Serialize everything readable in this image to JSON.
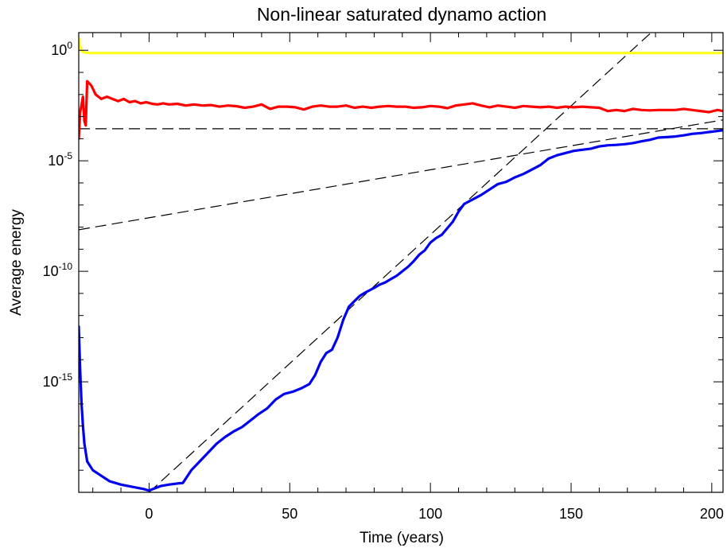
{
  "chart_data": {
    "type": "line",
    "title": "Non-linear saturated dynamo action",
    "xlabel": "Time (years)",
    "ylabel": "Average energy",
    "xlim": [
      -25,
      204
    ],
    "ylim_log10": [
      -20,
      0.8
    ],
    "y_scale": "log",
    "x_ticks": [
      0,
      50,
      100,
      150,
      200
    ],
    "x_tick_labels": [
      "0",
      "50",
      "100",
      "150",
      "200"
    ],
    "y_ticks_log10": [
      0,
      -5,
      -10,
      -15
    ],
    "y_tick_labels": [
      {
        "base": "10",
        "exp": "0"
      },
      {
        "base": "10",
        "exp": "-5"
      },
      {
        "base": "10",
        "exp": "-10"
      },
      {
        "base": "10",
        "exp": "-15"
      }
    ],
    "grid": false,
    "colors": {
      "kinetic": "#ffff22",
      "small_scale": "#ff0000",
      "magnetic": "#0000ee",
      "reference": "#000000"
    },
    "series": [
      {
        "key": "yellow",
        "color": "#ffff22",
        "x": [
          -25,
          -24.5,
          -24,
          -23,
          -21,
          -15,
          0,
          50,
          100,
          150,
          204
        ],
        "log10_y": [
          0.55,
          0.2,
          -0.05,
          -0.1,
          -0.12,
          -0.12,
          -0.12,
          -0.12,
          -0.12,
          -0.12,
          -0.12
        ]
      },
      {
        "key": "red",
        "color": "#ff0000",
        "x": [
          -25,
          -24.5,
          -23.5,
          -23,
          -22.5,
          -22,
          -20.5,
          -19,
          -17,
          -15,
          -13,
          -11,
          -9,
          -7,
          -5,
          -3,
          -1,
          1,
          3,
          5,
          7,
          10,
          13,
          16,
          19,
          22,
          25,
          28,
          31,
          34,
          37,
          40,
          43,
          46,
          49,
          52,
          55,
          58,
          61,
          64,
          67,
          70,
          73,
          76,
          79,
          82,
          85,
          88,
          91,
          94,
          97,
          100,
          103,
          106,
          109,
          112,
          115,
          118,
          121,
          124,
          127,
          130,
          133,
          136,
          139,
          142,
          145,
          148,
          151,
          154,
          157,
          160,
          163,
          166,
          169,
          172,
          175,
          178,
          181,
          184,
          187,
          190,
          193,
          196,
          199,
          202,
          204
        ],
        "log10_y": [
          -4.0,
          -2.8,
          -2.1,
          -3.2,
          -3.4,
          -1.4,
          -1.6,
          -2.0,
          -2.2,
          -2.1,
          -2.2,
          -2.3,
          -2.2,
          -2.35,
          -2.3,
          -2.4,
          -2.35,
          -2.42,
          -2.45,
          -2.4,
          -2.45,
          -2.42,
          -2.5,
          -2.45,
          -2.5,
          -2.48,
          -2.55,
          -2.5,
          -2.53,
          -2.6,
          -2.55,
          -2.45,
          -2.65,
          -2.55,
          -2.55,
          -2.58,
          -2.68,
          -2.55,
          -2.5,
          -2.55,
          -2.55,
          -2.5,
          -2.6,
          -2.55,
          -2.6,
          -2.55,
          -2.52,
          -2.55,
          -2.55,
          -2.6,
          -2.58,
          -2.52,
          -2.55,
          -2.62,
          -2.5,
          -2.45,
          -2.4,
          -2.5,
          -2.58,
          -2.5,
          -2.55,
          -2.6,
          -2.52,
          -2.55,
          -2.58,
          -2.55,
          -2.6,
          -2.55,
          -2.58,
          -2.55,
          -2.58,
          -2.6,
          -2.75,
          -2.7,
          -2.75,
          -2.65,
          -2.7,
          -2.72,
          -2.7,
          -2.7,
          -2.7,
          -2.65,
          -2.7,
          -2.75,
          -2.8,
          -2.7,
          -2.75
        ]
      },
      {
        "key": "blue",
        "color": "#0000ee",
        "x": [
          -25,
          -24.5,
          -24,
          -23.5,
          -23,
          -22,
          -20,
          -17,
          -14,
          -10,
          -6,
          -2,
          0,
          2,
          4,
          7,
          10,
          12,
          15,
          18,
          21,
          24,
          27,
          30,
          33,
          36,
          39,
          42,
          45,
          48,
          51,
          54,
          57,
          59,
          61,
          63,
          65,
          67,
          69,
          71,
          73,
          75,
          77,
          80,
          82,
          84,
          86,
          88,
          90,
          92,
          94,
          96,
          98,
          100,
          102,
          104,
          106,
          108,
          110,
          112,
          115,
          118,
          121,
          124,
          127,
          130,
          133,
          136,
          139,
          142,
          145,
          148,
          151,
          154,
          157,
          160,
          163,
          166,
          169,
          172,
          175,
          178,
          181,
          184,
          187,
          190,
          193,
          196,
          199,
          202,
          204
        ],
        "log10_y": [
          -12.5,
          -14.5,
          -16.0,
          -17.0,
          -17.8,
          -18.6,
          -19.0,
          -19.25,
          -19.5,
          -19.65,
          -19.75,
          -19.85,
          -19.92,
          -19.82,
          -19.72,
          -19.65,
          -19.6,
          -19.58,
          -19.0,
          -18.6,
          -18.2,
          -17.8,
          -17.5,
          -17.25,
          -17.05,
          -16.75,
          -16.45,
          -16.2,
          -15.8,
          -15.55,
          -15.45,
          -15.3,
          -15.1,
          -14.7,
          -14.1,
          -13.7,
          -13.55,
          -13.0,
          -12.2,
          -11.6,
          -11.35,
          -11.1,
          -10.95,
          -10.75,
          -10.6,
          -10.5,
          -10.35,
          -10.2,
          -10.0,
          -9.8,
          -9.55,
          -9.25,
          -9.05,
          -8.7,
          -8.5,
          -8.35,
          -8.05,
          -7.75,
          -7.3,
          -6.95,
          -6.75,
          -6.55,
          -6.3,
          -6.05,
          -5.95,
          -5.75,
          -5.6,
          -5.4,
          -5.2,
          -4.9,
          -4.75,
          -4.65,
          -4.55,
          -4.5,
          -4.45,
          -4.35,
          -4.3,
          -4.28,
          -4.25,
          -4.2,
          -4.12,
          -4.05,
          -3.95,
          -3.93,
          -3.9,
          -3.85,
          -3.78,
          -3.75,
          -3.7,
          -3.65,
          -3.62
        ]
      }
    ],
    "reference_lines": [
      {
        "key": "horizontal-dashed",
        "x": [
          -25,
          204
        ],
        "log10_y": [
          -3.55,
          -3.55
        ]
      },
      {
        "key": "shallow-dashed",
        "x": [
          -25,
          204
        ],
        "log10_y": [
          -8.12,
          -3.15
        ]
      },
      {
        "key": "steep-dashed",
        "x": [
          0,
          178
        ],
        "log10_y": [
          -20.0,
          0.75
        ]
      }
    ]
  }
}
